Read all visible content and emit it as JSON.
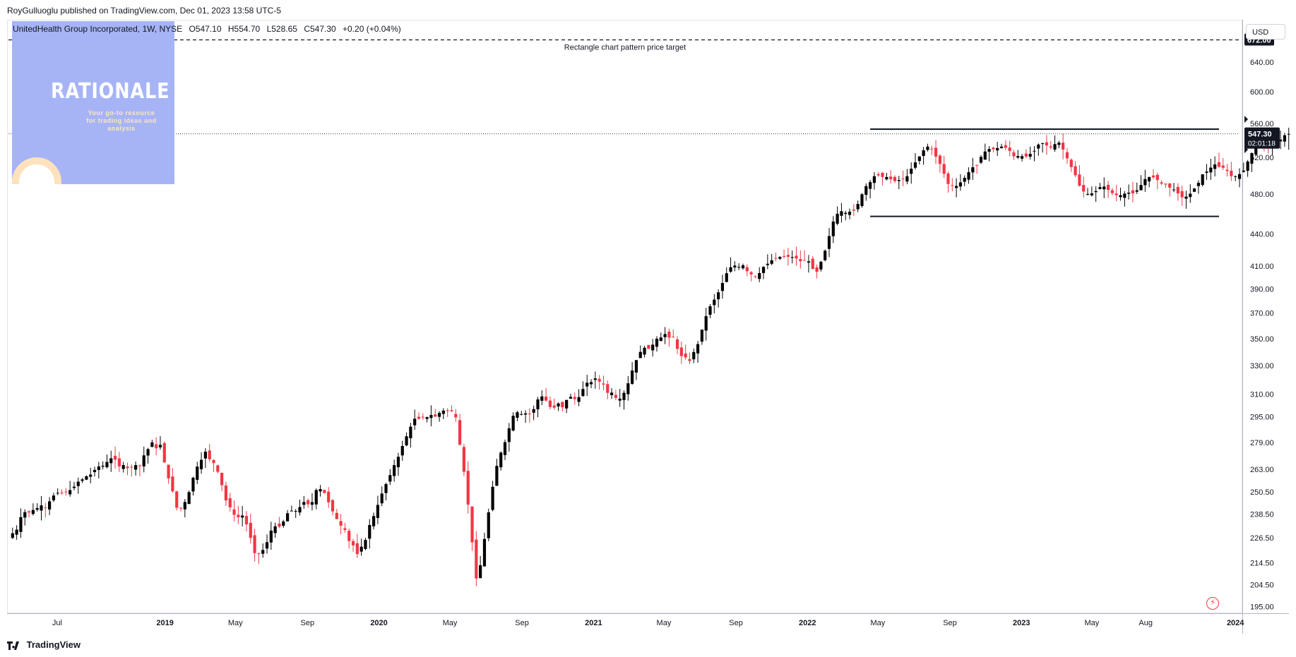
{
  "header": {
    "publisher": "RoyGulluoglu published on TradingView.com, Dec 01, 2023 13:58 UTC-5"
  },
  "legend": {
    "symbol": "UnitedHealth Group Incorporated, 1W, NYSE",
    "open": "O547.10",
    "high": "H554.70",
    "low": "L528.65",
    "close": "C547.30",
    "change": "+0.20 (+0.04%)"
  },
  "watermark": {
    "title": "RATIONALE",
    "subtitle": "Your go-to resource for trading ideas and analysis"
  },
  "currency": "USD",
  "brand": "TradingView",
  "annotations": {
    "target_label": "Rectangle chart pattern price target"
  },
  "price_tags": {
    "target": "672.00",
    "last": "547.30",
    "countdown": "02:01:18"
  },
  "colors": {
    "up": "#000000",
    "down": "#f23645",
    "text": "#131722",
    "grid": "#e0e3eb"
  },
  "icons": {
    "alert": "lightning-bolt-icon",
    "logo": "tradingview-logo-icon"
  },
  "chart_data": {
    "type": "candlestick",
    "symbol": "UNH",
    "interval": "1W",
    "log_scale": true,
    "y_ticks": [
      195,
      204.5,
      214.5,
      226.5,
      238.5,
      250.5,
      263,
      279,
      295,
      310,
      330,
      350,
      370,
      390,
      410,
      440,
      480,
      520,
      560,
      600,
      640,
      680
    ],
    "y_tick_labels": [
      "195.00",
      "204.50",
      "214.50",
      "226.50",
      "238.50",
      "250.50",
      "263.00",
      "279.00",
      "295.00",
      "310.00",
      "330.00",
      "350.00",
      "370.00",
      "390.00",
      "410.00",
      "440.00",
      "480.00",
      "520.00",
      "560.00",
      "600.00",
      "640.00",
      "680.00"
    ],
    "x_ticks": [
      {
        "date": "2018-07-01",
        "label": "Jul",
        "bold": false
      },
      {
        "date": "2019-01-01",
        "label": "2019",
        "bold": true
      },
      {
        "date": "2019-05-01",
        "label": "May",
        "bold": false
      },
      {
        "date": "2019-09-01",
        "label": "Sep",
        "bold": false
      },
      {
        "date": "2020-01-01",
        "label": "2020",
        "bold": true
      },
      {
        "date": "2020-05-01",
        "label": "May",
        "bold": false
      },
      {
        "date": "2020-09-01",
        "label": "Sep",
        "bold": false
      },
      {
        "date": "2021-01-01",
        "label": "2021",
        "bold": true
      },
      {
        "date": "2021-05-01",
        "label": "May",
        "bold": false
      },
      {
        "date": "2021-09-01",
        "label": "Sep",
        "bold": false
      },
      {
        "date": "2022-01-01",
        "label": "2022",
        "bold": true
      },
      {
        "date": "2022-05-01",
        "label": "May",
        "bold": false
      },
      {
        "date": "2022-09-01",
        "label": "Sep",
        "bold": false
      },
      {
        "date": "2023-01-01",
        "label": "2023",
        "bold": true
      },
      {
        "date": "2023-05-01",
        "label": "May",
        "bold": false
      },
      {
        "date": "2023-08-01",
        "label": "Aug",
        "bold": false
      },
      {
        "date": "2024-01-01",
        "label": "2024",
        "bold": true
      }
    ],
    "x_range": [
      "2018-04-09",
      "2024-01-08"
    ],
    "y_range": [
      193,
      700
    ],
    "first_week": "2018-04-16",
    "closes": [
      228.78,
      230.59,
      236.99,
      239.59,
      239.4,
      240.69,
      241.71,
      243.14,
      241.86,
      245.31,
      248.43,
      249.89,
      249.76,
      250.35,
      251.39,
      253.29,
      256.06,
      257.33,
      259.1,
      260.04,
      262.71,
      264.76,
      265.13,
      267.34,
      269.44,
      268.65,
      264.78,
      265.49,
      263.71,
      264.45,
      265.49,
      264.89,
      271.2,
      274.93,
      279.03,
      275.45,
      277.48,
      267.05,
      257.92,
      250.73,
      241.89,
      241.81,
      244.94,
      250.26,
      258.3,
      264.65,
      268.58,
      273.42,
      268.9,
      266.68,
      261.66,
      254.12,
      245.79,
      242.12,
      238.21,
      236.91,
      237.81,
      233.25,
      226.46,
      219.08,
      218.61,
      220.58,
      224.36,
      230.1,
      232.28,
      232.08,
      234.73,
      238.99,
      240.33,
      240.19,
      242.25,
      244.93,
      243.73,
      244.87,
      251.42,
      251.98,
      249.81,
      244.78,
      239.98,
      235.98,
      232.61,
      230.45,
      224.91,
      222.81,
      218.62,
      222.17,
      225.47,
      232.94,
      237.53,
      243.39,
      249.5,
      254.71,
      259.75,
      265.46,
      270.37,
      276.81,
      282.73,
      288.75,
      293.78,
      293.7,
      294.6,
      294.8,
      296.19,
      295.16,
      297.59,
      299.01,
      298.75,
      298.68,
      294.63,
      277.59,
      261.65,
      243.53,
      224.3,
      207.27,
      213.36,
      225.95,
      239.47,
      253.21,
      265.04,
      272.85,
      279.14,
      287.72,
      295.67,
      297.97,
      296.78,
      297.25,
      297.08,
      300.02,
      306.46,
      308.46,
      305.67,
      301.4,
      300.98,
      303.79,
      301.25,
      306.13,
      308.14,
      306.61,
      308.01,
      313.48,
      317.8,
      318.24,
      320.84,
      318.57,
      316.55,
      310.87,
      311.01,
      307.5,
      306.96,
      310.92,
      317.43,
      326.41,
      333.93,
      339.96,
      343.06,
      342.23,
      345.38,
      349.87,
      350.82,
      353.46,
      350.74,
      350.93,
      342.21,
      336.89,
      335.92,
      333.3,
      339.85,
      345.78,
      356.92,
      367.57,
      375.59,
      381.06,
      387.18,
      395.18,
      403.65,
      408.98,
      410.47,
      409.33,
      410.74,
      405.44,
      402.7,
      400.66,
      403.81,
      409.28,
      412.09,
      415.26,
      416.73,
      418.36,
      418.65,
      418.45,
      418.13,
      416.87,
      414.41,
      415.18,
      414.26,
      407.54,
      404.99,
      413.87,
      423.98,
      437.82,
      451.91,
      459.67,
      462.23,
      460.59,
      461.74,
      462.78,
      469.59,
      479.67,
      488.29,
      492.5,
      498.97,
      499.82,
      498.12,
      498.06,
      495.67,
      493.63,
      494.82,
      495.62,
      498.97,
      507.18,
      514.26,
      520.98,
      527.99,
      532.23,
      529.62,
      520.75,
      512.49,
      501.53,
      490.5,
      488.63,
      488.39,
      492.25,
      497.15,
      503.3,
      508.75,
      510.98,
      520.41,
      526.58,
      529.44,
      529.2,
      530.57,
      532.29,
      530.92,
      527.26,
      521.15,
      521.38,
      521.31,
      520.86,
      523.82,
      527.38,
      534.65,
      536.17,
      533.56,
      531.39,
      535.21,
      536.8,
      528.89,
      518.83,
      509.01,
      499.99,
      488.67,
      482.51,
      479.94,
      480.55,
      483.03,
      487.19,
      487.78,
      484.11,
      480.84,
      478.72,
      478.73,
      480.29,
      481.31,
      480.59,
      483.84,
      489.48,
      495.84,
      498.09,
      497.7,
      494.86,
      490.93,
      490.0,
      486.67,
      484.61,
      480.55,
      476.51,
      477.17,
      480.24,
      485.74,
      491.86,
      501.03,
      504.06,
      508.41,
      511.92,
      509.28,
      508.2,
      504.64,
      498.99,
      498.88,
      501.29,
      505.09,
      515.22,
      524.76,
      532.52,
      537.99,
      536.11,
      535.61,
      535.56,
      536.06,
      540.47,
      545.67,
      547.3
    ],
    "rectangle": {
      "top": 553,
      "bottom": 457,
      "from": "2022-04-18",
      "to": "2023-12-04"
    },
    "target": 672.0
  }
}
